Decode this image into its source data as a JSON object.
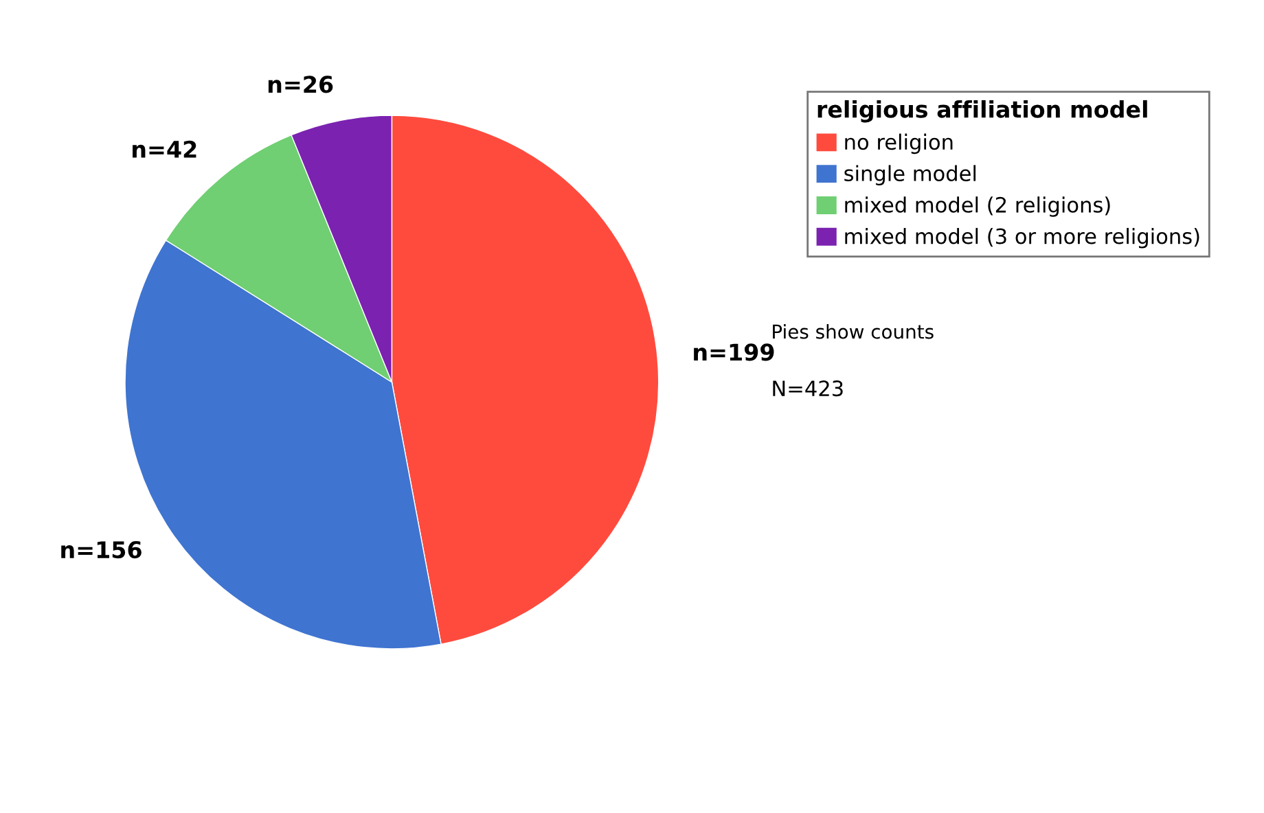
{
  "chart_data": {
    "type": "pie",
    "categories": [
      "no religion",
      "single model",
      "mixed model (2 religions)",
      "mixed model (3 or more religions)"
    ],
    "values": [
      199,
      156,
      42,
      26
    ],
    "colors": [
      "#ff4b3e",
      "#3f74d0",
      "#6fcf72",
      "#7b22b0"
    ],
    "value_labels": [
      "n=199",
      "n=156",
      "n=42",
      "n=26"
    ],
    "legend_title": "religious affiliation model",
    "legend": "top right",
    "annotations": [
      "Pies show counts",
      "N=423"
    ]
  }
}
